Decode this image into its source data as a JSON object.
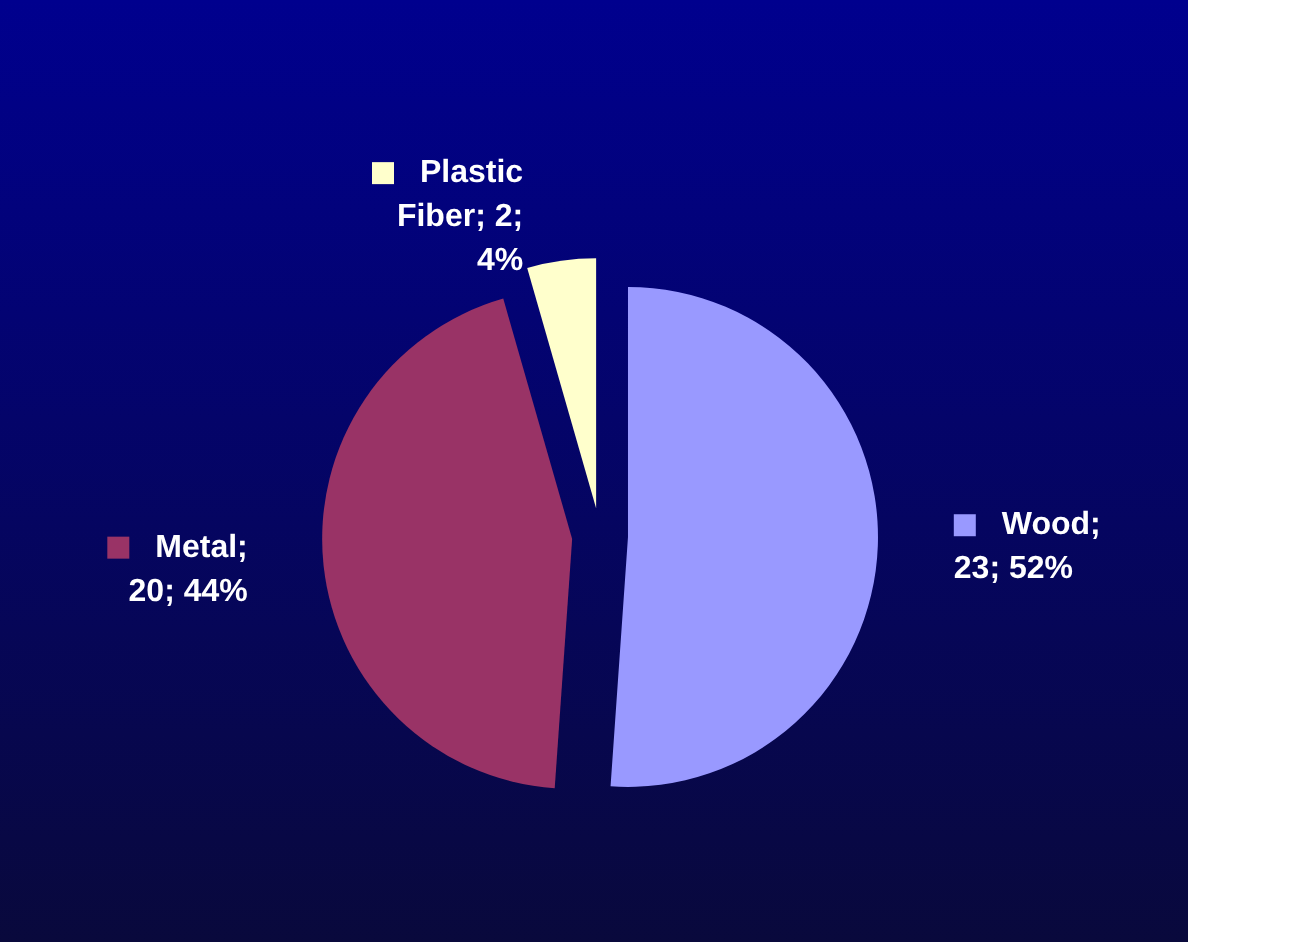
{
  "chart_data": {
    "type": "pie",
    "categories": [
      "Wood",
      "Metal",
      "Plastic Fiber"
    ],
    "values": [
      23,
      20,
      2
    ],
    "colors": [
      "#9999ff",
      "#993366",
      "#ffffcc"
    ],
    "value_labels": [
      "; 23; 52%",
      "; 20; 44%",
      "; 2; 4%"
    ],
    "legend": "center"
  }
}
